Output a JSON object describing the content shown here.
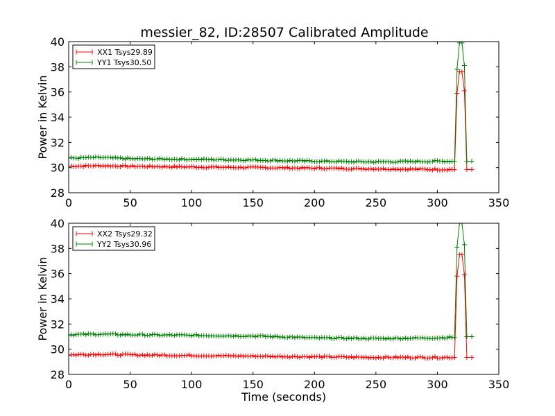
{
  "figure": {
    "title": "messier_82, ID:28507 Calibrated Amplitude"
  },
  "chart_data": [
    {
      "type": "line",
      "title": "messier_82, ID:28507 Calibrated Amplitude",
      "xlabel": "",
      "ylabel": "Power in Kelvin",
      "xlim": [
        0,
        350
      ],
      "ylim": [
        28,
        40
      ],
      "xticks": [
        0,
        50,
        100,
        150,
        200,
        250,
        300,
        350
      ],
      "yticks": [
        28,
        30,
        32,
        34,
        36,
        38,
        40
      ],
      "grid": false,
      "legend_position": "top-left",
      "marker": "plus",
      "series": [
        {
          "name": "XX1 Tsys29.89",
          "color": "#ff0000",
          "x": [
            0,
            25,
            50,
            100,
            150,
            200,
            250,
            300,
            314,
            316,
            318,
            320,
            322,
            324,
            328
          ],
          "values": [
            30.1,
            30.15,
            30.1,
            30.05,
            30.0,
            29.95,
            29.9,
            29.85,
            29.85,
            35.9,
            37.6,
            37.6,
            36.1,
            29.85,
            29.85
          ]
        },
        {
          "name": "YY1 Tsys30.50",
          "color": "#008000",
          "x": [
            0,
            25,
            50,
            100,
            150,
            200,
            250,
            300,
            314,
            316,
            318,
            320,
            322,
            324,
            328
          ],
          "values": [
            30.75,
            30.8,
            30.7,
            30.65,
            30.6,
            30.5,
            30.45,
            30.5,
            30.5,
            37.8,
            39.9,
            39.9,
            38.1,
            30.5,
            30.5
          ]
        }
      ]
    },
    {
      "type": "line",
      "title": "",
      "xlabel": "Time (seconds)",
      "ylabel": "Power in Kelvin",
      "xlim": [
        0,
        350
      ],
      "ylim": [
        28,
        40
      ],
      "xticks": [
        0,
        50,
        100,
        150,
        200,
        250,
        300,
        350
      ],
      "yticks": [
        28,
        30,
        32,
        34,
        36,
        38,
        40
      ],
      "grid": false,
      "legend_position": "top-left",
      "marker": "plus",
      "series": [
        {
          "name": "XX2 Tsys29.32",
          "color": "#ff0000",
          "x": [
            0,
            25,
            50,
            100,
            150,
            200,
            250,
            300,
            314,
            316,
            318,
            320,
            322,
            324,
            328
          ],
          "values": [
            29.55,
            29.6,
            29.55,
            29.5,
            29.45,
            29.4,
            29.35,
            29.35,
            29.35,
            35.8,
            37.5,
            37.5,
            35.9,
            29.35,
            29.35
          ]
        },
        {
          "name": "YY2 Tsys30.96",
          "color": "#008000",
          "x": [
            0,
            25,
            50,
            100,
            150,
            200,
            250,
            300,
            314,
            316,
            318,
            320,
            322,
            324,
            328
          ],
          "values": [
            31.15,
            31.2,
            31.15,
            31.1,
            31.05,
            30.9,
            30.85,
            30.9,
            30.95,
            38.1,
            40.0,
            40.0,
            38.3,
            31.0,
            31.0
          ]
        }
      ]
    }
  ]
}
